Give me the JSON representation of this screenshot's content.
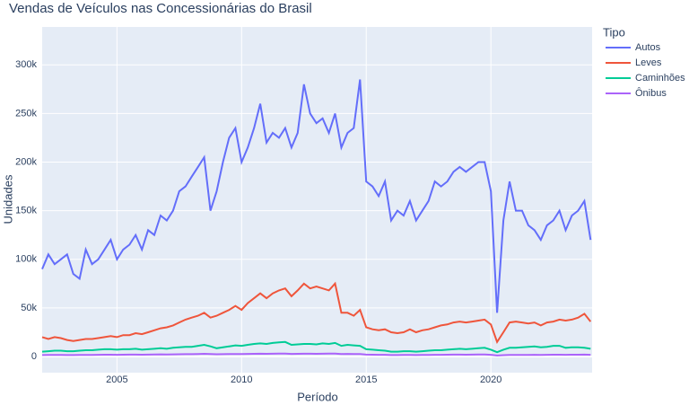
{
  "chart_data": {
    "type": "line",
    "title": "Vendas de Veículos nas Concessionárias do Brasil",
    "x_label": "Período",
    "y_label": "Unidades",
    "legend_title": "Tipo",
    "legend_position": "right",
    "grid": true,
    "xlim": [
      2002,
      2024.06
    ],
    "xticks": [
      2005,
      2010,
      2015,
      2020
    ],
    "ylim": [
      -16600,
      339000
    ],
    "yticks": [
      0,
      {
        "value": 50000,
        "label": "50k"
      },
      {
        "value": 100000,
        "label": "100k"
      },
      {
        "value": 150000,
        "label": "150k"
      },
      {
        "value": 200000,
        "label": "200k"
      },
      {
        "value": 250000,
        "label": "250k"
      },
      {
        "value": 300000,
        "label": "300k"
      }
    ],
    "x": [
      2002,
      2002.25,
      2002.5,
      2002.75,
      2003,
      2003.25,
      2003.5,
      2003.75,
      2004,
      2004.25,
      2004.5,
      2004.75,
      2005,
      2005.25,
      2005.5,
      2005.75,
      2006,
      2006.25,
      2006.5,
      2006.75,
      2007,
      2007.25,
      2007.5,
      2007.75,
      2008,
      2008.25,
      2008.5,
      2008.75,
      2009,
      2009.25,
      2009.5,
      2009.75,
      2010,
      2010.25,
      2010.5,
      2010.75,
      2011,
      2011.25,
      2011.5,
      2011.75,
      2012,
      2012.25,
      2012.5,
      2012.75,
      2013,
      2013.25,
      2013.5,
      2013.75,
      2014,
      2014.25,
      2014.5,
      2014.75,
      2015,
      2015.25,
      2015.5,
      2015.75,
      2016,
      2016.25,
      2016.5,
      2016.75,
      2017,
      2017.25,
      2017.5,
      2017.75,
      2018,
      2018.25,
      2018.5,
      2018.75,
      2019,
      2019.25,
      2019.5,
      2019.75,
      2020,
      2020.25,
      2020.5,
      2020.75,
      2021,
      2021.25,
      2021.5,
      2021.75,
      2022,
      2022.25,
      2022.5,
      2022.75,
      2023,
      2023.25,
      2023.5,
      2023.75,
      2024
    ],
    "series": [
      {
        "name": "Autos",
        "color": "#636efa",
        "values": [
          90000,
          105000,
          95000,
          100000,
          105000,
          85000,
          80000,
          110000,
          95000,
          100000,
          110000,
          120000,
          100000,
          110000,
          115000,
          125000,
          110000,
          130000,
          125000,
          145000,
          140000,
          150000,
          170000,
          175000,
          185000,
          195000,
          205000,
          150000,
          170000,
          200000,
          225000,
          235000,
          200000,
          215000,
          235000,
          260000,
          220000,
          230000,
          225000,
          235000,
          215000,
          230000,
          280000,
          250000,
          240000,
          245000,
          230000,
          250000,
          215000,
          230000,
          235000,
          285000,
          180000,
          175000,
          165000,
          180000,
          140000,
          150000,
          145000,
          160000,
          140000,
          150000,
          160000,
          180000,
          175000,
          180000,
          190000,
          195000,
          190000,
          195000,
          200000,
          200000,
          170000,
          45000,
          140000,
          180000,
          150000,
          150000,
          135000,
          130000,
          120000,
          135000,
          140000,
          150000,
          130000,
          145000,
          150000,
          160000,
          120000
        ]
      },
      {
        "name": "Leves",
        "color": "#ef553b",
        "values": [
          20000,
          18000,
          20000,
          19000,
          17000,
          16000,
          17000,
          18000,
          18000,
          19000,
          20000,
          21000,
          20000,
          22000,
          22000,
          24000,
          23000,
          25000,
          27000,
          29000,
          30000,
          32000,
          35000,
          38000,
          40000,
          42000,
          45000,
          40000,
          42000,
          45000,
          48000,
          52000,
          48000,
          55000,
          60000,
          65000,
          60000,
          65000,
          68000,
          70000,
          62000,
          68000,
          75000,
          70000,
          72000,
          70000,
          68000,
          75000,
          45000,
          45000,
          42000,
          48000,
          30000,
          28000,
          27000,
          28000,
          25000,
          24000,
          25000,
          28000,
          25000,
          27000,
          28000,
          30000,
          32000,
          33000,
          35000,
          36000,
          35000,
          36000,
          37000,
          38000,
          33000,
          15000,
          25000,
          35000,
          36000,
          35000,
          34000,
          35000,
          32000,
          35000,
          36000,
          38000,
          37000,
          38000,
          40000,
          44000,
          36000
        ]
      },
      {
        "name": "Caminhões",
        "color": "#00cc96",
        "values": [
          5000,
          5500,
          6000,
          6000,
          5500,
          5500,
          6000,
          6500,
          6500,
          7000,
          7500,
          7500,
          7000,
          7500,
          7500,
          8000,
          7000,
          7500,
          8000,
          8500,
          8000,
          9000,
          9500,
          10000,
          10000,
          11000,
          12000,
          10500,
          8500,
          9500,
          10500,
          11500,
          11000,
          12000,
          13000,
          13500,
          13000,
          14000,
          14500,
          15000,
          12000,
          12500,
          13000,
          13000,
          12500,
          13500,
          13000,
          14000,
          11000,
          12000,
          11500,
          11000,
          7500,
          7000,
          6500,
          6000,
          5000,
          5000,
          5500,
          5500,
          5000,
          5500,
          6000,
          6500,
          6500,
          7000,
          7500,
          8000,
          7500,
          8000,
          8500,
          9000,
          7000,
          4500,
          7000,
          9000,
          9000,
          9500,
          10000,
          10500,
          9500,
          10000,
          11000,
          11000,
          9000,
          9500,
          9500,
          9000,
          8000
        ]
      },
      {
        "name": "Ônibus",
        "color": "#ab63fa",
        "values": [
          1500,
          1600,
          1700,
          1600,
          1500,
          1500,
          1600,
          1700,
          1700,
          1800,
          1900,
          1900,
          1800,
          1900,
          2000,
          2000,
          1900,
          2000,
          2100,
          2200,
          2100,
          2200,
          2300,
          2400,
          2400,
          2600,
          2800,
          2500,
          2300,
          2400,
          2500,
          2600,
          2500,
          2700,
          2800,
          2900,
          2800,
          2900,
          3000,
          3000,
          2700,
          2800,
          2900,
          2900,
          2800,
          2900,
          3000,
          3000,
          2600,
          2700,
          2600,
          2500,
          2000,
          1900,
          1800,
          1800,
          1500,
          1500,
          1600,
          1600,
          1500,
          1600,
          1700,
          1800,
          1800,
          1900,
          2000,
          2000,
          1900,
          2000,
          2100,
          2100,
          1800,
          1000,
          1400,
          1600,
          1600,
          1700,
          1700,
          1800,
          1700,
          1800,
          1900,
          1900,
          1800,
          1900,
          1900,
          2000,
          1800
        ]
      }
    ]
  }
}
